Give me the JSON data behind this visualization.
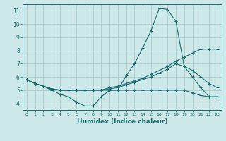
{
  "xlabel": "Humidex (Indice chaleur)",
  "ylabel": "",
  "bg_color": "#cce8e8",
  "line_color": "#1a6b6b",
  "grid_color": "#aacccc",
  "xlim": [
    -0.5,
    23.5
  ],
  "ylim": [
    3.5,
    11.5
  ],
  "xticks": [
    0,
    1,
    2,
    3,
    4,
    5,
    6,
    7,
    8,
    9,
    10,
    11,
    12,
    13,
    14,
    15,
    16,
    17,
    18,
    19,
    20,
    21,
    22,
    23
  ],
  "yticks": [
    4,
    5,
    6,
    7,
    8,
    9,
    10,
    11
  ],
  "lines": [
    {
      "x": [
        0,
        1,
        2,
        3,
        4,
        5,
        6,
        7,
        8,
        9,
        10,
        11,
        12,
        13,
        14,
        15,
        16,
        17,
        18,
        19,
        20,
        21,
        22,
        23
      ],
      "y": [
        5.8,
        5.5,
        5.3,
        5.0,
        4.7,
        4.5,
        4.1,
        3.8,
        3.8,
        4.5,
        5.0,
        5.0,
        6.1,
        7.0,
        8.2,
        9.5,
        11.2,
        11.1,
        10.2,
        6.8,
        6.0,
        5.2,
        4.5,
        4.5
      ]
    },
    {
      "x": [
        0,
        1,
        2,
        3,
        4,
        5,
        6,
        7,
        8,
        9,
        10,
        11,
        12,
        13,
        14,
        15,
        16,
        17,
        18,
        19,
        20,
        21,
        22,
        23
      ],
      "y": [
        5.8,
        5.5,
        5.3,
        5.1,
        5.0,
        5.0,
        5.0,
        5.0,
        5.0,
        5.0,
        5.2,
        5.3,
        5.5,
        5.7,
        5.9,
        6.2,
        6.5,
        6.8,
        7.2,
        7.5,
        7.8,
        8.1,
        8.1,
        8.1
      ]
    },
    {
      "x": [
        0,
        1,
        2,
        3,
        4,
        5,
        6,
        7,
        8,
        9,
        10,
        11,
        12,
        13,
        14,
        15,
        16,
        17,
        18,
        19,
        20,
        21,
        22,
        23
      ],
      "y": [
        5.8,
        5.5,
        5.3,
        5.1,
        5.0,
        5.0,
        5.0,
        5.0,
        5.0,
        5.0,
        5.1,
        5.2,
        5.4,
        5.6,
        5.8,
        6.0,
        6.3,
        6.6,
        7.0,
        6.8,
        6.5,
        6.0,
        5.5,
        5.2
      ]
    },
    {
      "x": [
        0,
        1,
        2,
        3,
        4,
        5,
        6,
        7,
        8,
        9,
        10,
        11,
        12,
        13,
        14,
        15,
        16,
        17,
        18,
        19,
        20,
        21,
        22,
        23
      ],
      "y": [
        5.8,
        5.5,
        5.3,
        5.1,
        5.0,
        5.0,
        5.0,
        5.0,
        5.0,
        5.0,
        5.0,
        5.0,
        5.0,
        5.0,
        5.0,
        5.0,
        5.0,
        5.0,
        5.0,
        5.0,
        4.8,
        4.6,
        4.5,
        4.5
      ]
    }
  ]
}
